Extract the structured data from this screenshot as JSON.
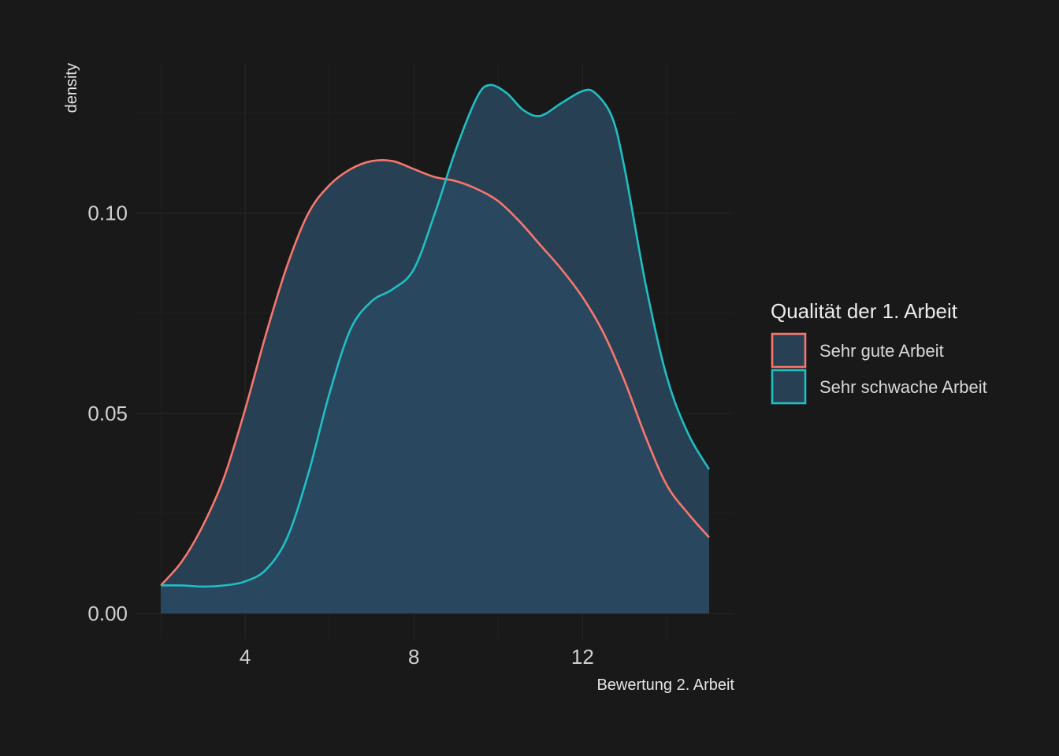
{
  "chart_data": {
    "type": "area",
    "title": "",
    "xlabel": "Bewertung 2. Arbeit",
    "ylabel": "density",
    "xlim": [
      1.4,
      15.6
    ],
    "ylim": [
      -0.0065,
      0.1375
    ],
    "x_ticks": [
      4,
      8,
      12
    ],
    "x_tick_labels": [
      "4",
      "8",
      "12"
    ],
    "y_ticks": [
      0,
      0.05,
      0.1
    ],
    "y_tick_labels": [
      "0.00",
      "0.05",
      "0.10"
    ],
    "grid": true,
    "legend": {
      "title": "Qualität der 1. Arbeit",
      "position": "right"
    },
    "series": [
      {
        "name": "Sehr gute Arbeit",
        "color": "#f8766d",
        "fill": "#2a4a63",
        "points": [
          [
            2,
            0.007
          ],
          [
            2.5,
            0.013
          ],
          [
            3,
            0.022
          ],
          [
            3.5,
            0.034
          ],
          [
            4,
            0.051
          ],
          [
            4.5,
            0.07
          ],
          [
            5,
            0.087
          ],
          [
            5.5,
            0.1
          ],
          [
            6,
            0.107
          ],
          [
            6.5,
            0.111
          ],
          [
            7,
            0.113
          ],
          [
            7.5,
            0.113
          ],
          [
            8,
            0.111
          ],
          [
            8.5,
            0.109
          ],
          [
            9,
            0.108
          ],
          [
            9.5,
            0.106
          ],
          [
            10,
            0.103
          ],
          [
            10.5,
            0.098
          ],
          [
            11,
            0.092
          ],
          [
            11.5,
            0.086
          ],
          [
            12,
            0.079
          ],
          [
            12.5,
            0.07
          ],
          [
            13,
            0.058
          ],
          [
            13.5,
            0.044
          ],
          [
            14,
            0.032
          ],
          [
            14.5,
            0.025
          ],
          [
            15,
            0.019
          ]
        ]
      },
      {
        "name": "Sehr schwache Arbeit",
        "color": "#1fbfc4",
        "fill": "#2a4a63",
        "points": [
          [
            2,
            0.007
          ],
          [
            2.5,
            0.007
          ],
          [
            3,
            0.0067
          ],
          [
            3.5,
            0.007
          ],
          [
            4,
            0.008
          ],
          [
            4.5,
            0.011
          ],
          [
            5,
            0.019
          ],
          [
            5.5,
            0.035
          ],
          [
            6,
            0.055
          ],
          [
            6.5,
            0.071
          ],
          [
            7,
            0.078
          ],
          [
            7.5,
            0.081
          ],
          [
            8,
            0.086
          ],
          [
            8.5,
            0.1
          ],
          [
            9,
            0.116
          ],
          [
            9.5,
            0.129
          ],
          [
            9.8,
            0.132
          ],
          [
            10.2,
            0.13
          ],
          [
            10.6,
            0.1257
          ],
          [
            11,
            0.1243
          ],
          [
            11.5,
            0.1275
          ],
          [
            12,
            0.1305
          ],
          [
            12.3,
            0.13
          ],
          [
            12.7,
            0.124
          ],
          [
            13,
            0.111
          ],
          [
            13.5,
            0.082
          ],
          [
            14,
            0.059
          ],
          [
            14.5,
            0.045
          ],
          [
            15,
            0.036
          ]
        ]
      }
    ]
  }
}
